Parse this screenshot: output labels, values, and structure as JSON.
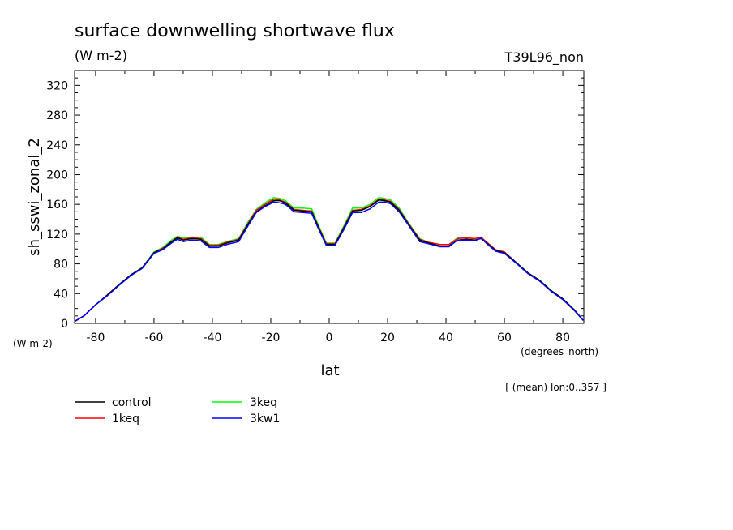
{
  "chart_data": {
    "type": "line",
    "title": "surface downwelling shortwave flux",
    "subtitle": "(W m-2)",
    "dataset_label": "T39L96_non",
    "xlabel": "lat",
    "x_units": "(degrees_north)",
    "ylabel": "sh_sswi_zonal_2",
    "y_units": "(W m-2)",
    "footnote": "[ (mean) lon:0..357 ]",
    "xlim": [
      -87.2,
      87.2
    ],
    "ylim": [
      0,
      340
    ],
    "x_ticks": [
      "-80",
      "-60",
      "-40",
      "-20",
      "0",
      "20",
      "40",
      "60",
      "80"
    ],
    "y_ticks": [
      "0",
      "40",
      "80",
      "120",
      "160",
      "200",
      "240",
      "280",
      "320"
    ],
    "grid": false,
    "legend_position": "bottom-left",
    "x": [
      -87,
      -84,
      -80,
      -76,
      -72,
      -68,
      -64,
      -60,
      -57,
      -54,
      -52,
      -50,
      -47,
      -44,
      -41,
      -38,
      -35,
      -31,
      -28,
      -25,
      -22,
      -19,
      -17,
      -15,
      -12,
      -9,
      -6,
      -4,
      -1,
      2,
      5,
      8,
      11,
      14,
      17,
      19,
      21,
      24,
      27,
      31,
      34,
      38,
      41,
      44,
      47,
      50,
      52,
      54,
      57,
      60,
      64,
      68,
      72,
      76,
      80,
      84,
      87
    ],
    "series": [
      {
        "name": "control",
        "color": "#000000",
        "values": [
          3,
          10,
          25,
          38,
          52,
          65,
          75,
          95,
          100,
          110,
          115,
          112,
          114,
          113,
          104,
          104,
          108,
          112,
          132,
          150,
          158,
          165,
          165,
          162,
          152,
          151,
          150,
          132,
          106,
          106,
          128,
          151,
          152,
          157,
          166,
          165,
          163,
          152,
          134,
          112,
          108,
          104,
          104,
          112,
          113,
          112,
          114,
          108,
          98,
          95,
          82,
          68,
          58,
          44,
          33,
          18,
          4
        ]
      },
      {
        "name": "1keq",
        "color": "#ff0000",
        "values": [
          3,
          10,
          25,
          38,
          52,
          65,
          75,
          95,
          101,
          110,
          116,
          113,
          115,
          114,
          105,
          105,
          109,
          113,
          133,
          152,
          160,
          167,
          166,
          163,
          153,
          152,
          151,
          133,
          107,
          107,
          129,
          152,
          153,
          158,
          167,
          166,
          164,
          153,
          135,
          113,
          109,
          106,
          106,
          114,
          115,
          114,
          116,
          109,
          99,
          96,
          82,
          68,
          58,
          44,
          33,
          18,
          4
        ]
      },
      {
        "name": "3keq",
        "color": "#00ff00",
        "values": [
          3,
          10,
          25,
          38,
          52,
          65,
          75,
          96,
          102,
          112,
          117,
          115,
          116,
          116,
          106,
          106,
          110,
          114,
          135,
          153,
          162,
          169,
          168,
          165,
          155,
          155,
          154,
          135,
          108,
          108,
          131,
          155,
          155,
          160,
          169,
          168,
          166,
          155,
          136,
          114,
          109,
          106,
          106,
          115,
          115,
          114,
          116,
          109,
          99,
          96,
          82,
          68,
          58,
          44,
          33,
          18,
          4
        ]
      },
      {
        "name": "3kw1",
        "color": "#0000ff",
        "values": [
          3,
          10,
          25,
          37,
          51,
          64,
          74,
          94,
          99,
          108,
          113,
          110,
          112,
          111,
          102,
          102,
          106,
          110,
          130,
          149,
          157,
          163,
          162,
          160,
          150,
          149,
          148,
          130,
          105,
          105,
          126,
          149,
          149,
          154,
          163,
          163,
          161,
          150,
          133,
          110,
          107,
          103,
          103,
          112,
          112,
          111,
          115,
          107,
          97,
          94,
          81,
          67,
          57,
          43,
          32,
          17,
          4
        ]
      }
    ]
  }
}
